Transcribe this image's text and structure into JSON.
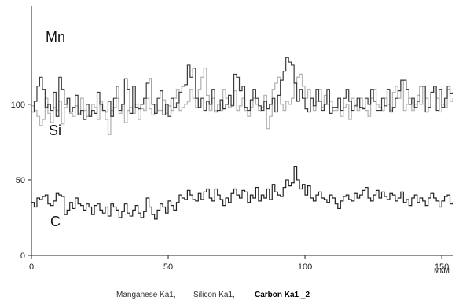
{
  "chart_data": {
    "type": "line",
    "xlabel": "мкм",
    "ylabel": "",
    "xlim": [
      0,
      154
    ],
    "ylim": [
      0,
      165
    ],
    "xticks": [
      0,
      50,
      100,
      150
    ],
    "yticks": [
      0,
      50,
      100
    ],
    "x_tick_labels": [
      "0",
      "50",
      "100",
      "150"
    ],
    "y_tick_labels": [
      "0",
      "50",
      "100"
    ],
    "step": 1,
    "grid": false,
    "legend_text": [
      "Manganese Ka1,",
      "Silicon Ka1,",
      "Carbon Ka1 _2"
    ],
    "series": [
      {
        "name": "Mn",
        "color": "#3a3a3a",
        "values": [
          95,
          102,
          112,
          118,
          110,
          98,
          100,
          96,
          108,
          92,
          118,
          110,
          100,
          104,
          95,
          98,
          106,
          93,
          96,
          90,
          100,
          92,
          96,
          94,
          108,
          100,
          96,
          95,
          102,
          92,
          104,
          112,
          96,
          100,
          117,
          110,
          94,
          112,
          98,
          97,
          100,
          104,
          114,
          117,
          100,
          94,
          104,
          109,
          93,
          100,
          92,
          104,
          98,
          101,
          108,
          112,
          113,
          126,
          118,
          124,
          104,
          98,
          104,
          96,
          102,
          100,
          110,
          95,
          96,
          103,
          97,
          100,
          106,
          99,
          120,
          118,
          109,
          112,
          98,
          96,
          103,
          110,
          104,
          99,
          96,
          102,
          97,
          100,
          104,
          95,
          106,
          116,
          122,
          131,
          128,
          126,
          114,
          102,
          110,
          104,
          97,
          95,
          104,
          99,
          110,
          102,
          96,
          100,
          110,
          94,
          98,
          98,
          104,
          96,
          104,
          110,
          102,
          96,
          99,
          104,
          98,
          97,
          104,
          100,
          110,
          102,
          96,
          96,
          104,
          99,
          110,
          95,
          98,
          104,
          109,
          116,
          116,
          110,
          100,
          104,
          98,
          102,
          112,
          112,
          95,
          98,
          108,
          112,
          96,
          110,
          98,
          104,
          112,
          107,
          108
        ]
      },
      {
        "name": "Si",
        "color": "#b6b6b6",
        "values": [
          99,
          96,
          92,
          86,
          90,
          104,
          94,
          88,
          98,
          96,
          102,
          87,
          98,
          104,
          94,
          92,
          99,
          94,
          104,
          96,
          92,
          93,
          100,
          98,
          90,
          102,
          96,
          90,
          80,
          96,
          98,
          104,
          94,
          100,
          88,
          96,
          98,
          94,
          100,
          90,
          97,
          96,
          104,
          97,
          93,
          100,
          96,
          96,
          103,
          94,
          99,
          96,
          104,
          110,
          96,
          98,
          100,
          102,
          110,
          104,
          98,
          110,
          118,
          124,
          106,
          96,
          104,
          96,
          100,
          96,
          110,
          104,
          98,
          100,
          109,
          96,
          99,
          104,
          96,
          92,
          98,
          104,
          100,
          96,
          98,
          106,
          84,
          92,
          110,
          114,
          118,
          100,
          96,
          102,
          100,
          104,
          114,
          118,
          120,
          112,
          104,
          110,
          104,
          96,
          102,
          110,
          98,
          106,
          100,
          102,
          96,
          96,
          104,
          92,
          98,
          100,
          90,
          104,
          100,
          96,
          104,
          98,
          96,
          92,
          104,
          110,
          100,
          98,
          96,
          104,
          100,
          96,
          108,
          112,
          104,
          116,
          96,
          100,
          104,
          96,
          100,
          106,
          100,
          112,
          104,
          98,
          108,
          112,
          104,
          95,
          100,
          98,
          110,
          102,
          104
        ]
      },
      {
        "name": "C",
        "color": "#222222",
        "values": [
          35,
          32,
          38,
          37,
          39,
          40,
          34,
          33,
          36,
          41,
          40,
          39,
          27,
          30,
          35,
          31,
          38,
          34,
          33,
          30,
          34,
          32,
          27,
          33,
          34,
          30,
          28,
          32,
          26,
          34,
          32,
          30,
          25,
          29,
          34,
          28,
          26,
          30,
          33,
          28,
          25,
          29,
          38,
          32,
          27,
          24,
          30,
          34,
          32,
          28,
          36,
          33,
          30,
          35,
          40,
          38,
          37,
          43,
          40,
          37,
          36,
          41,
          37,
          42,
          44,
          38,
          36,
          44,
          40,
          37,
          33,
          38,
          35,
          41,
          44,
          40,
          38,
          43,
          42,
          35,
          40,
          38,
          45,
          36,
          40,
          38,
          44,
          37,
          47,
          42,
          40,
          39,
          45,
          50,
          46,
          48,
          59,
          50,
          44,
          47,
          40,
          46,
          38,
          36,
          40,
          42,
          38,
          37,
          35,
          40,
          38,
          34,
          31,
          36,
          39,
          40,
          37,
          36,
          41,
          38,
          40,
          43,
          45,
          38,
          36,
          40,
          43,
          38,
          42,
          39,
          37,
          41,
          40,
          36,
          38,
          42,
          35,
          37,
          33,
          38,
          40,
          35,
          38,
          36,
          33,
          38,
          41,
          38,
          36,
          32,
          36,
          39,
          40,
          34,
          35
        ]
      }
    ]
  }
}
